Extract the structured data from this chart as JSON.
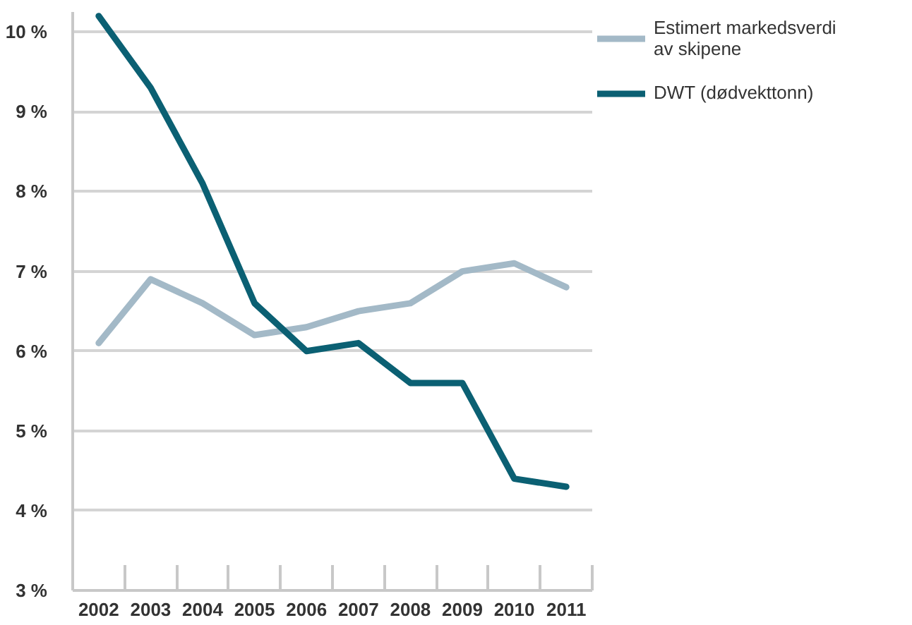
{
  "chart_data": {
    "type": "line",
    "categories": [
      "2002",
      "2003",
      "2004",
      "2005",
      "2006",
      "2007",
      "2008",
      "2009",
      "2010",
      "2011"
    ],
    "series": [
      {
        "name": "Estimert markedsverdi av skipene",
        "color": "#a3b9c7",
        "values": [
          6.1,
          6.9,
          6.6,
          6.2,
          6.3,
          6.5,
          6.6,
          7.0,
          7.1,
          6.8
        ]
      },
      {
        "name": "DWT (dødvekttonn)",
        "color": "#0b6073",
        "values": [
          10.2,
          9.3,
          8.1,
          6.6,
          6.0,
          6.1,
          5.6,
          5.6,
          4.4,
          4.3
        ]
      }
    ],
    "ylim": [
      3,
      10.25
    ],
    "yticks": [
      {
        "value": 3,
        "label": "3 %"
      },
      {
        "value": 4,
        "label": "4 %"
      },
      {
        "value": 5,
        "label": "5 %"
      },
      {
        "value": 6,
        "label": "6 %"
      },
      {
        "value": 7,
        "label": "7 %"
      },
      {
        "value": 8,
        "label": "8 %"
      },
      {
        "value": 9,
        "label": "9 %"
      },
      {
        "value": 10,
        "label": "10 %"
      }
    ],
    "grid": "y",
    "legend": "top right"
  }
}
